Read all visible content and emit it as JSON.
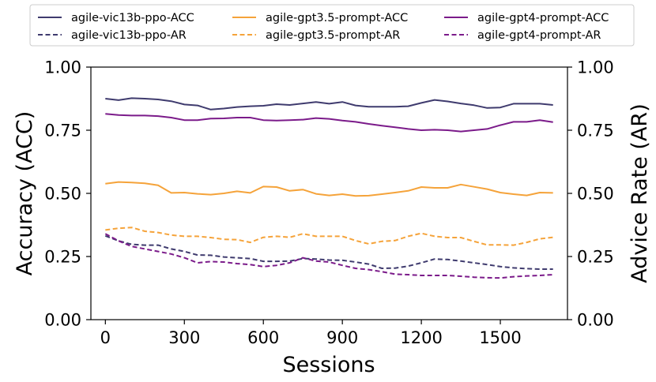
{
  "chart_data": {
    "type": "line",
    "xlabel": "Sessions",
    "ylabel": "Accuracy (ACC)",
    "ylabel_right": "Advice Rate (AR)",
    "xlim": [
      -55,
      1755
    ],
    "ylim": [
      0,
      1
    ],
    "xticks": [
      0,
      300,
      600,
      900,
      1200,
      1500
    ],
    "xtick_labels": [
      "0",
      "300",
      "600",
      "900",
      "1200",
      "1500"
    ],
    "yticks": [
      0,
      0.25,
      0.5,
      0.75,
      1
    ],
    "ytick_labels": [
      "0.00",
      "0.25",
      "0.50",
      "0.75",
      "1.00"
    ],
    "grid": false,
    "legend_position": "top, above plot, 3 columns",
    "x": [
      0,
      50,
      100,
      150,
      200,
      250,
      300,
      350,
      400,
      450,
      500,
      550,
      600,
      650,
      700,
      750,
      800,
      850,
      900,
      950,
      1000,
      1050,
      1100,
      1150,
      1200,
      1250,
      1300,
      1350,
      1400,
      1450,
      1500,
      1550,
      1600,
      1650,
      1700
    ],
    "series": [
      {
        "name": "agile-vic13b-ppo-ACC",
        "color": "#3f3b6e",
        "style": "solid",
        "values": [
          0.875,
          0.869,
          0.877,
          0.875,
          0.872,
          0.865,
          0.852,
          0.848,
          0.832,
          0.836,
          0.842,
          0.845,
          0.847,
          0.853,
          0.85,
          0.856,
          0.862,
          0.855,
          0.862,
          0.848,
          0.843,
          0.843,
          0.843,
          0.845,
          0.858,
          0.87,
          0.864,
          0.856,
          0.849,
          0.838,
          0.84,
          0.855,
          0.855,
          0.855,
          0.85
        ]
      },
      {
        "name": "agile-vic13b-ppo-AR",
        "color": "#3f3b6e",
        "style": "dashed",
        "values": [
          0.332,
          0.312,
          0.298,
          0.295,
          0.295,
          0.28,
          0.27,
          0.256,
          0.255,
          0.248,
          0.245,
          0.242,
          0.231,
          0.231,
          0.232,
          0.242,
          0.24,
          0.236,
          0.235,
          0.228,
          0.22,
          0.203,
          0.204,
          0.212,
          0.225,
          0.24,
          0.238,
          0.232,
          0.225,
          0.218,
          0.21,
          0.205,
          0.202,
          0.2,
          0.2
        ]
      },
      {
        "name": "agile-gpt3.5-prompt-ACC",
        "color": "#f5a33a",
        "style": "solid",
        "values": [
          0.538,
          0.545,
          0.543,
          0.54,
          0.532,
          0.502,
          0.503,
          0.498,
          0.495,
          0.5,
          0.508,
          0.502,
          0.527,
          0.525,
          0.51,
          0.515,
          0.498,
          0.492,
          0.497,
          0.49,
          0.491,
          0.497,
          0.503,
          0.51,
          0.525,
          0.522,
          0.522,
          0.535,
          0.526,
          0.517,
          0.503,
          0.497,
          0.492,
          0.503,
          0.502
        ]
      },
      {
        "name": "agile-gpt3.5-prompt-AR",
        "color": "#f5a33a",
        "style": "dashed",
        "values": [
          0.355,
          0.362,
          0.365,
          0.35,
          0.345,
          0.335,
          0.33,
          0.33,
          0.325,
          0.318,
          0.317,
          0.306,
          0.326,
          0.33,
          0.326,
          0.34,
          0.33,
          0.33,
          0.33,
          0.313,
          0.3,
          0.31,
          0.313,
          0.33,
          0.342,
          0.33,
          0.325,
          0.325,
          0.31,
          0.296,
          0.296,
          0.295,
          0.306,
          0.32,
          0.326
        ]
      },
      {
        "name": "agile-gpt4-prompt-ACC",
        "color": "#7b1b8a",
        "style": "solid",
        "values": [
          0.815,
          0.81,
          0.808,
          0.808,
          0.806,
          0.8,
          0.79,
          0.79,
          0.796,
          0.797,
          0.8,
          0.8,
          0.79,
          0.788,
          0.79,
          0.792,
          0.798,
          0.795,
          0.788,
          0.783,
          0.775,
          0.768,
          0.762,
          0.755,
          0.75,
          0.752,
          0.75,
          0.745,
          0.75,
          0.755,
          0.77,
          0.783,
          0.783,
          0.79,
          0.782
        ]
      },
      {
        "name": "agile-gpt4-prompt-AR",
        "color": "#7b1b8a",
        "style": "dashed",
        "values": [
          0.34,
          0.312,
          0.29,
          0.28,
          0.27,
          0.26,
          0.245,
          0.225,
          0.23,
          0.228,
          0.222,
          0.218,
          0.21,
          0.215,
          0.225,
          0.245,
          0.232,
          0.228,
          0.215,
          0.203,
          0.198,
          0.19,
          0.18,
          0.178,
          0.175,
          0.175,
          0.175,
          0.172,
          0.168,
          0.166,
          0.165,
          0.17,
          0.173,
          0.175,
          0.178
        ]
      }
    ]
  }
}
